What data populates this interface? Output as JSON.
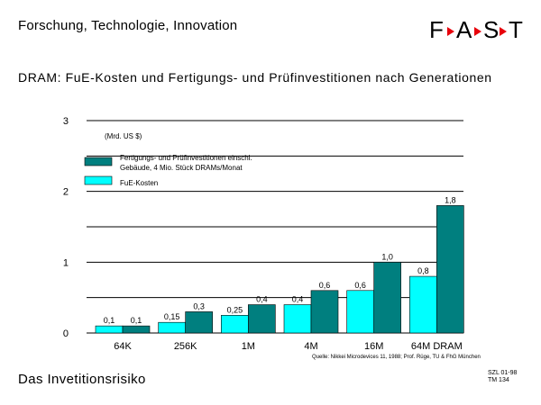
{
  "header": {
    "title": "Forschung, Technologie, Innovation"
  },
  "logo": {
    "text": "FAST",
    "letters": [
      "F",
      "A",
      "S",
      "T"
    ],
    "accent_color": "#e8000b"
  },
  "footer": {
    "title": "Das Invetitionsrisiko",
    "code_line1": "SZL 01-98",
    "code_line2": "TM 134"
  },
  "chart_data": {
    "type": "bar",
    "title": "DRAM: FuE-Kosten und Fertigungs- und Prüfinvestitionen nach Generationen",
    "unit_label": "(Mrd. US $)",
    "categories": [
      "64K",
      "256K",
      "1M",
      "4M",
      "16M",
      "64M DRAM"
    ],
    "ylim": [
      0,
      3
    ],
    "yticks": [
      0,
      1,
      2,
      3
    ],
    "grid": true,
    "legend_position": "top-left",
    "series": [
      {
        "name": "FuE-Kosten",
        "color": "#00ffff",
        "values": [
          0.1,
          0.15,
          0.25,
          0.4,
          0.6,
          0.8
        ],
        "labels": [
          "0,1",
          "0,15",
          "0,25",
          "0,4",
          "0,6",
          "0,8"
        ]
      },
      {
        "name": "Fertigungs- und Prüfinvestitionen einschl. Gebäude, 4 Mio. Stück DRAMs/Monat",
        "legend_lines": [
          "Fertigungs- und Prüfinvestitionen einschl.",
          "Gebäude, 4 Mio. Stück DRAMs/Monat"
        ],
        "color": "#007f7f",
        "values": [
          0.1,
          0.3,
          0.4,
          0.6,
          1.0,
          1.8
        ],
        "labels": [
          "0,1",
          "0,3",
          "0,4",
          "0,6",
          "1,0",
          "1,8"
        ]
      }
    ],
    "source": "Quelle: Nikkei Microdevices 11, 1988; Prof. Rüge, TU & FhG München"
  }
}
